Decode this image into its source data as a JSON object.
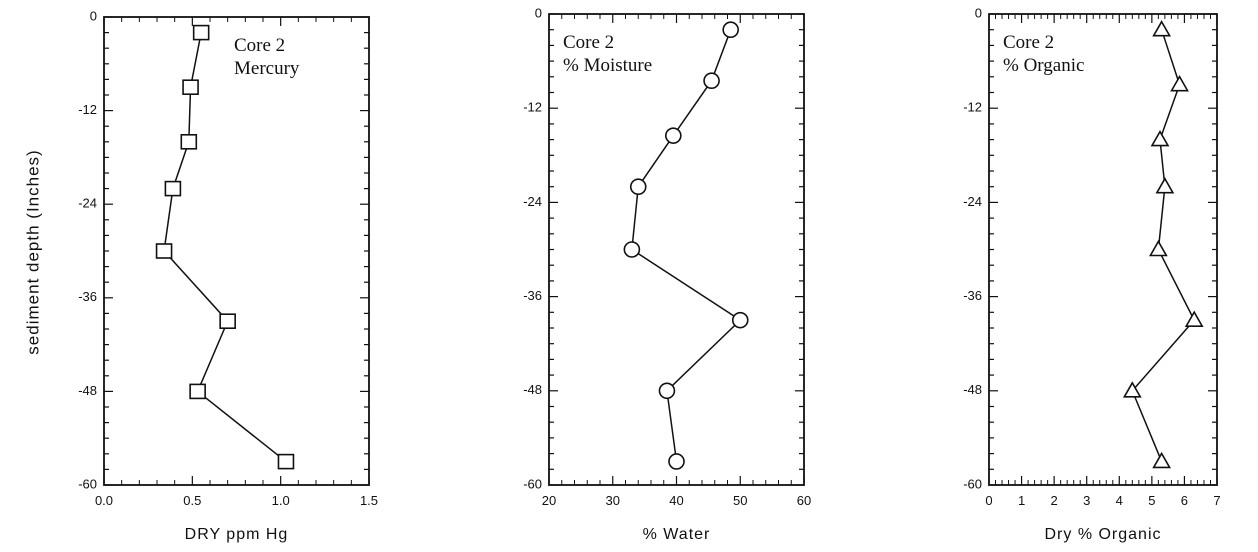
{
  "ylabel": "sediment depth (Inches)",
  "chart_data": [
    {
      "type": "line",
      "marker": "square",
      "title_lines": [
        "Core 2",
        "Mercury"
      ],
      "xlabel": "DRY ppm Hg",
      "xlim": [
        0.0,
        1.5
      ],
      "xticks": [
        "0.0",
        "0.5",
        "1.0",
        "1.5"
      ],
      "ylim": [
        -60,
        0
      ],
      "yticks": [
        "0",
        "-12",
        "-24",
        "-36",
        "-48",
        "-60"
      ],
      "x": [
        0.55,
        0.49,
        0.48,
        0.39,
        0.34,
        0.7,
        0.53,
        1.03
      ],
      "y": [
        -2,
        -9,
        -16,
        -22,
        -30,
        -39,
        -48,
        -57
      ]
    },
    {
      "type": "line",
      "marker": "circle",
      "title_lines": [
        "Core 2",
        "% Moisture"
      ],
      "xlabel": "% Water",
      "xlim": [
        20,
        60
      ],
      "xticks": [
        "20",
        "30",
        "40",
        "50",
        "60"
      ],
      "ylim": [
        -60,
        0
      ],
      "yticks": [
        "0",
        "-12",
        "-24",
        "-36",
        "-48",
        "-60"
      ],
      "x": [
        48.5,
        45.5,
        39.5,
        34,
        33,
        50,
        38.5,
        40
      ],
      "y": [
        -2,
        -8.5,
        -15.5,
        -22,
        -30,
        -39,
        -48,
        -57
      ]
    },
    {
      "type": "line",
      "marker": "triangle",
      "title_lines": [
        "Core 2",
        "% Organic"
      ],
      "xlabel": "Dry % Organic",
      "xlim": [
        0,
        7
      ],
      "xticks": [
        "0",
        "1",
        "2",
        "3",
        "4",
        "5",
        "6",
        "7"
      ],
      "ylim": [
        -60,
        0
      ],
      "yticks": [
        "0",
        "-12",
        "-24",
        "-36",
        "-48",
        "-60"
      ],
      "x": [
        5.3,
        5.85,
        5.25,
        5.4,
        5.2,
        6.3,
        4.4,
        5.3
      ],
      "y": [
        -2,
        -9,
        -16,
        -22,
        -30,
        -39,
        -48,
        -57
      ]
    }
  ]
}
